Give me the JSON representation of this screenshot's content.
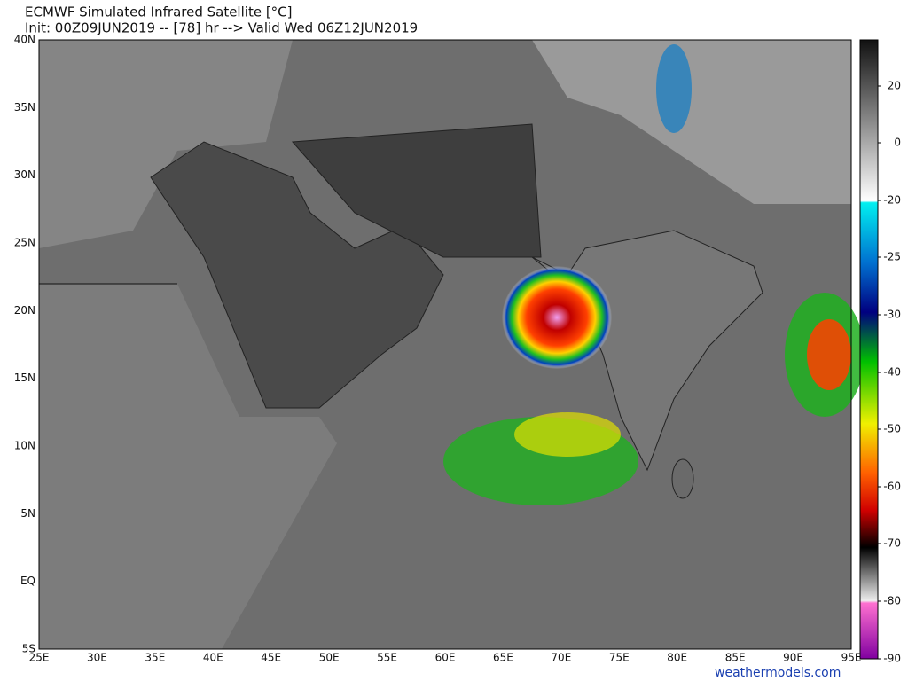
{
  "header": {
    "title": "ECMWF Simulated Infrared Satellite [°C]",
    "subtitle": "Init: 00Z09JUN2019 -- [78] hr --> Valid Wed 06Z12JUN2019"
  },
  "map": {
    "lat_labels": [
      "40N",
      "35N",
      "30N",
      "25N",
      "20N",
      "15N",
      "10N",
      "5N",
      "EQ",
      "5S"
    ],
    "lon_labels": [
      "25E",
      "30E",
      "35E",
      "40E",
      "45E",
      "50E",
      "55E",
      "60E",
      "65E",
      "70E",
      "75E",
      "80E",
      "85E",
      "90E",
      "95E"
    ]
  },
  "colorbar": {
    "ticks": [
      20,
      0,
      -20,
      -25,
      -30,
      -40,
      -50,
      -60,
      -70,
      -80,
      -90
    ]
  },
  "footer": {
    "credit": "weathermodels.com"
  }
}
